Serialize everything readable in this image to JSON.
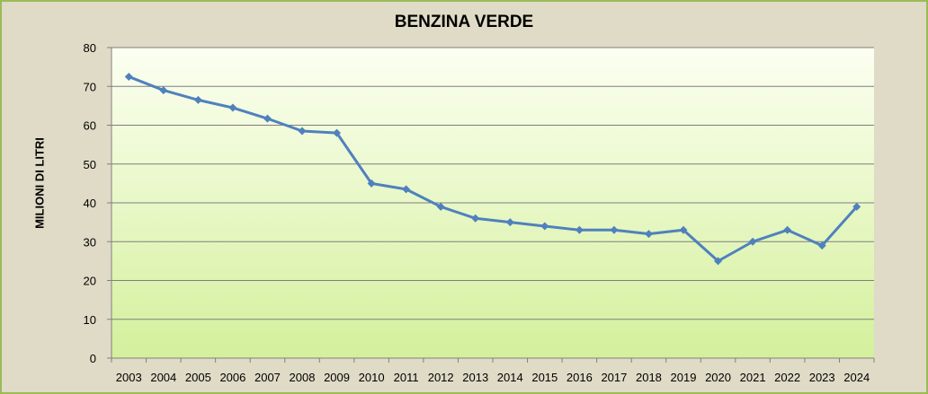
{
  "chart_data": {
    "type": "line",
    "title": "BENZINA VERDE",
    "xlabel": "",
    "ylabel": "MILIONI DI LITRI",
    "x": [
      "2003",
      "2004",
      "2005",
      "2006",
      "2007",
      "2008",
      "2009",
      "2010",
      "2011",
      "2012",
      "2013",
      "2014",
      "2015",
      "2016",
      "2017",
      "2018",
      "2019",
      "2020",
      "2021",
      "2022",
      "2023",
      "2024"
    ],
    "series": [
      {
        "values": [
          72.5,
          69,
          66.5,
          64.5,
          61.7,
          58.5,
          58,
          45,
          43.5,
          39,
          36,
          35,
          34,
          33,
          33,
          32,
          33,
          25,
          30,
          33,
          29,
          39
        ]
      }
    ],
    "ylim": [
      0,
      80
    ],
    "yticks": [
      0,
      10,
      20,
      30,
      40,
      50,
      60,
      70,
      80
    ],
    "grid": true,
    "legend": "none",
    "colors": {
      "line": "#4f81bd",
      "frame_bg": "#dfdbc6",
      "frame_border": "#9bbb59",
      "plot_top": "#fcfff2",
      "plot_bottom": "#d4f09c",
      "gridline": "#7f7f7f"
    }
  }
}
